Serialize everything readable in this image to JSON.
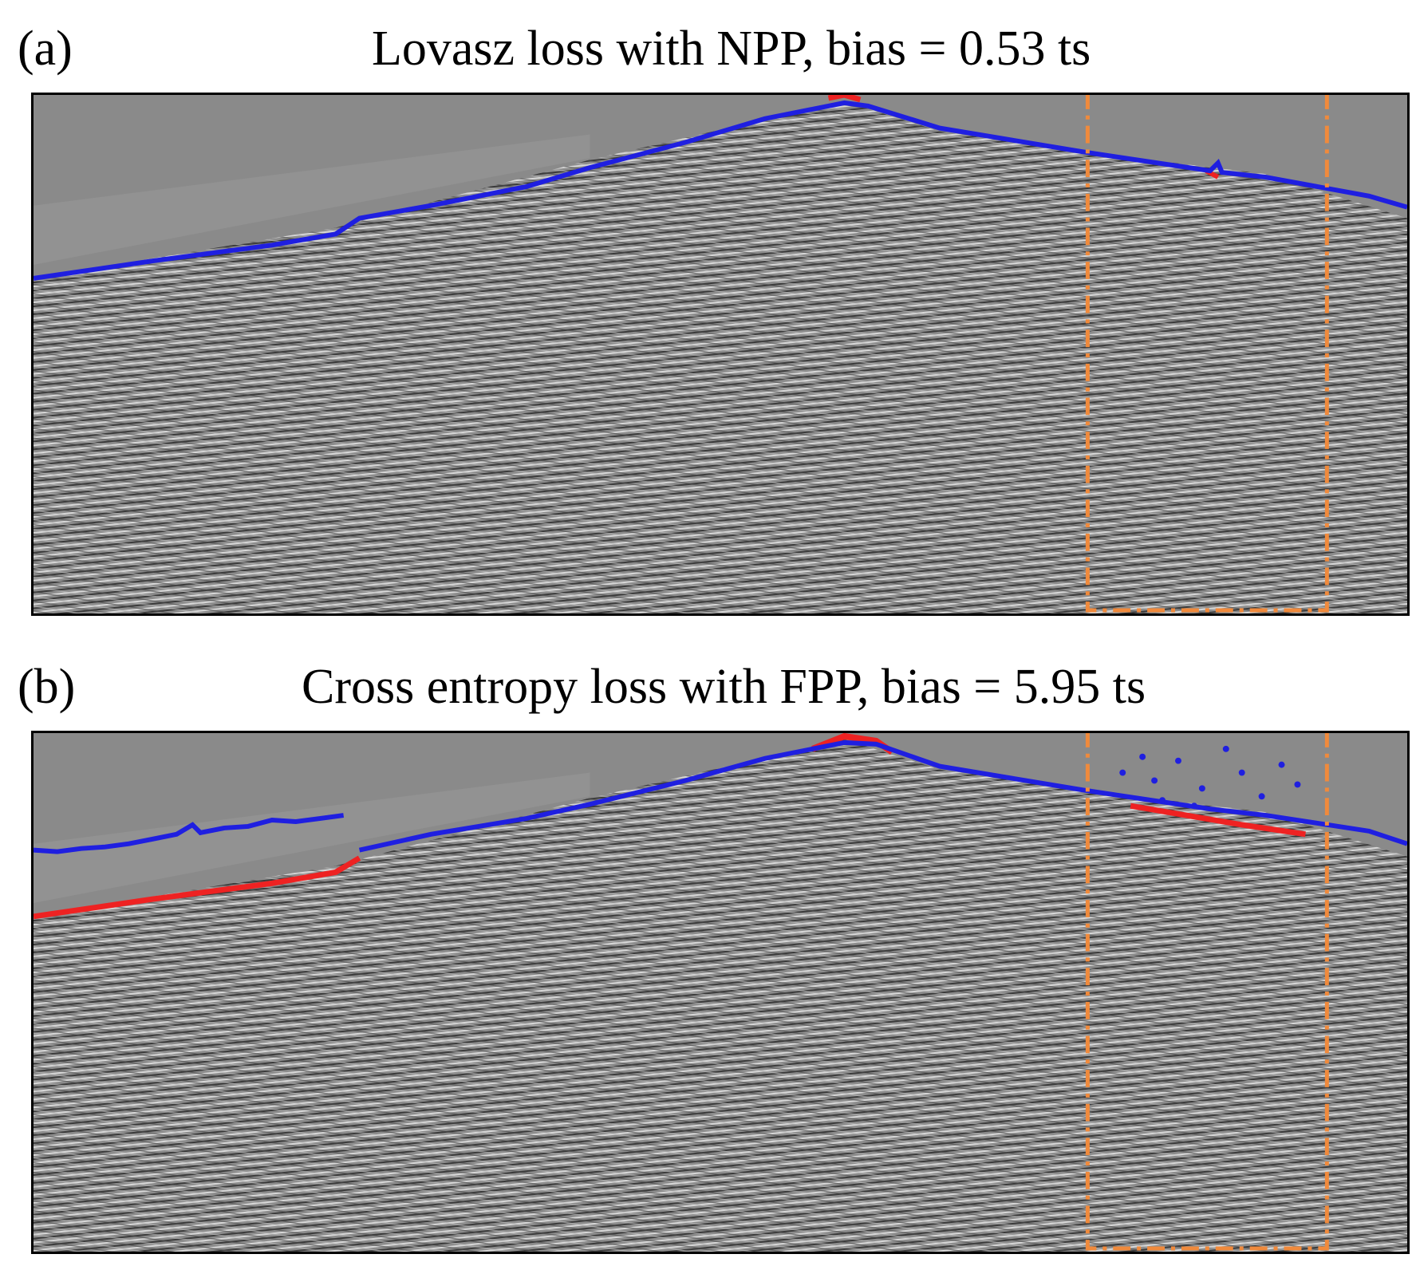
{
  "figure": {
    "panels": [
      {
        "label": "(a)",
        "title": "Lovasz loss with NPP, bias = 0.53 ts"
      },
      {
        "label": "(b)",
        "title": "Cross entropy loss with FPP, bias = 5.95 ts"
      }
    ],
    "colors": {
      "background": "#8a8a8a",
      "prediction_line": "#1f1fe0",
      "reference_line": "#ee2222",
      "highlight_box": "#f08a3c"
    }
  }
}
